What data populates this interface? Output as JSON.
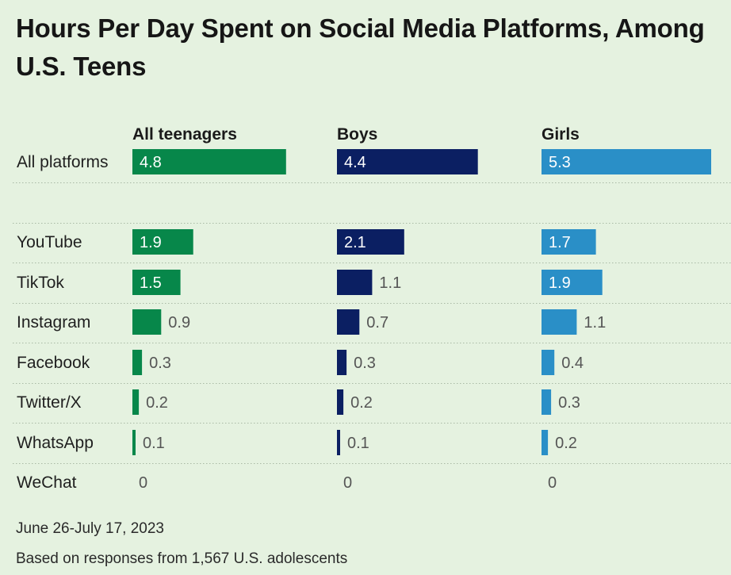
{
  "title": "Hours Per Day Spent on Social Media Platforms, Among U.S. Teens",
  "chart_data": {
    "type": "bar",
    "title": "Hours Per Day Spent on Social Media Platforms, Among U.S. Teens",
    "groups": [
      "All teenagers",
      "Boys",
      "Girls"
    ],
    "categories": [
      "All platforms",
      "YouTube",
      "TikTok",
      "Instagram",
      "Facebook",
      "Twitter/X",
      "WhatsApp",
      "WeChat"
    ],
    "series": [
      {
        "name": "All teenagers",
        "color": "#07874a",
        "values": [
          4.8,
          1.9,
          1.5,
          0.9,
          0.3,
          0.2,
          0.1,
          0
        ]
      },
      {
        "name": "Boys",
        "color": "#0b1f62",
        "values": [
          4.4,
          2.1,
          1.1,
          0.7,
          0.3,
          0.2,
          0.1,
          0
        ]
      },
      {
        "name": "Girls",
        "color": "#2a8fc7",
        "values": [
          5.3,
          1.7,
          1.9,
          1.1,
          0.4,
          0.3,
          0.2,
          0
        ]
      }
    ],
    "value_labels": [
      [
        "4.8",
        "1.9",
        "1.5",
        "0.9",
        "0.3",
        "0.2",
        "0.1",
        "0"
      ],
      [
        "4.4",
        "2.1",
        "1.1",
        "0.7",
        "0.3",
        "0.2",
        "0.1",
        "0"
      ],
      [
        "5.3",
        "1.7",
        "1.9",
        "1.1",
        "0.4",
        "0.3",
        "0.2",
        "0"
      ]
    ],
    "xlim": [
      0,
      5.3
    ],
    "grid": false,
    "legend": "none"
  },
  "notes": {
    "date": "June 26-July 17, 2023",
    "base": "Based on responses from 1,567 U.S. adolescents"
  }
}
